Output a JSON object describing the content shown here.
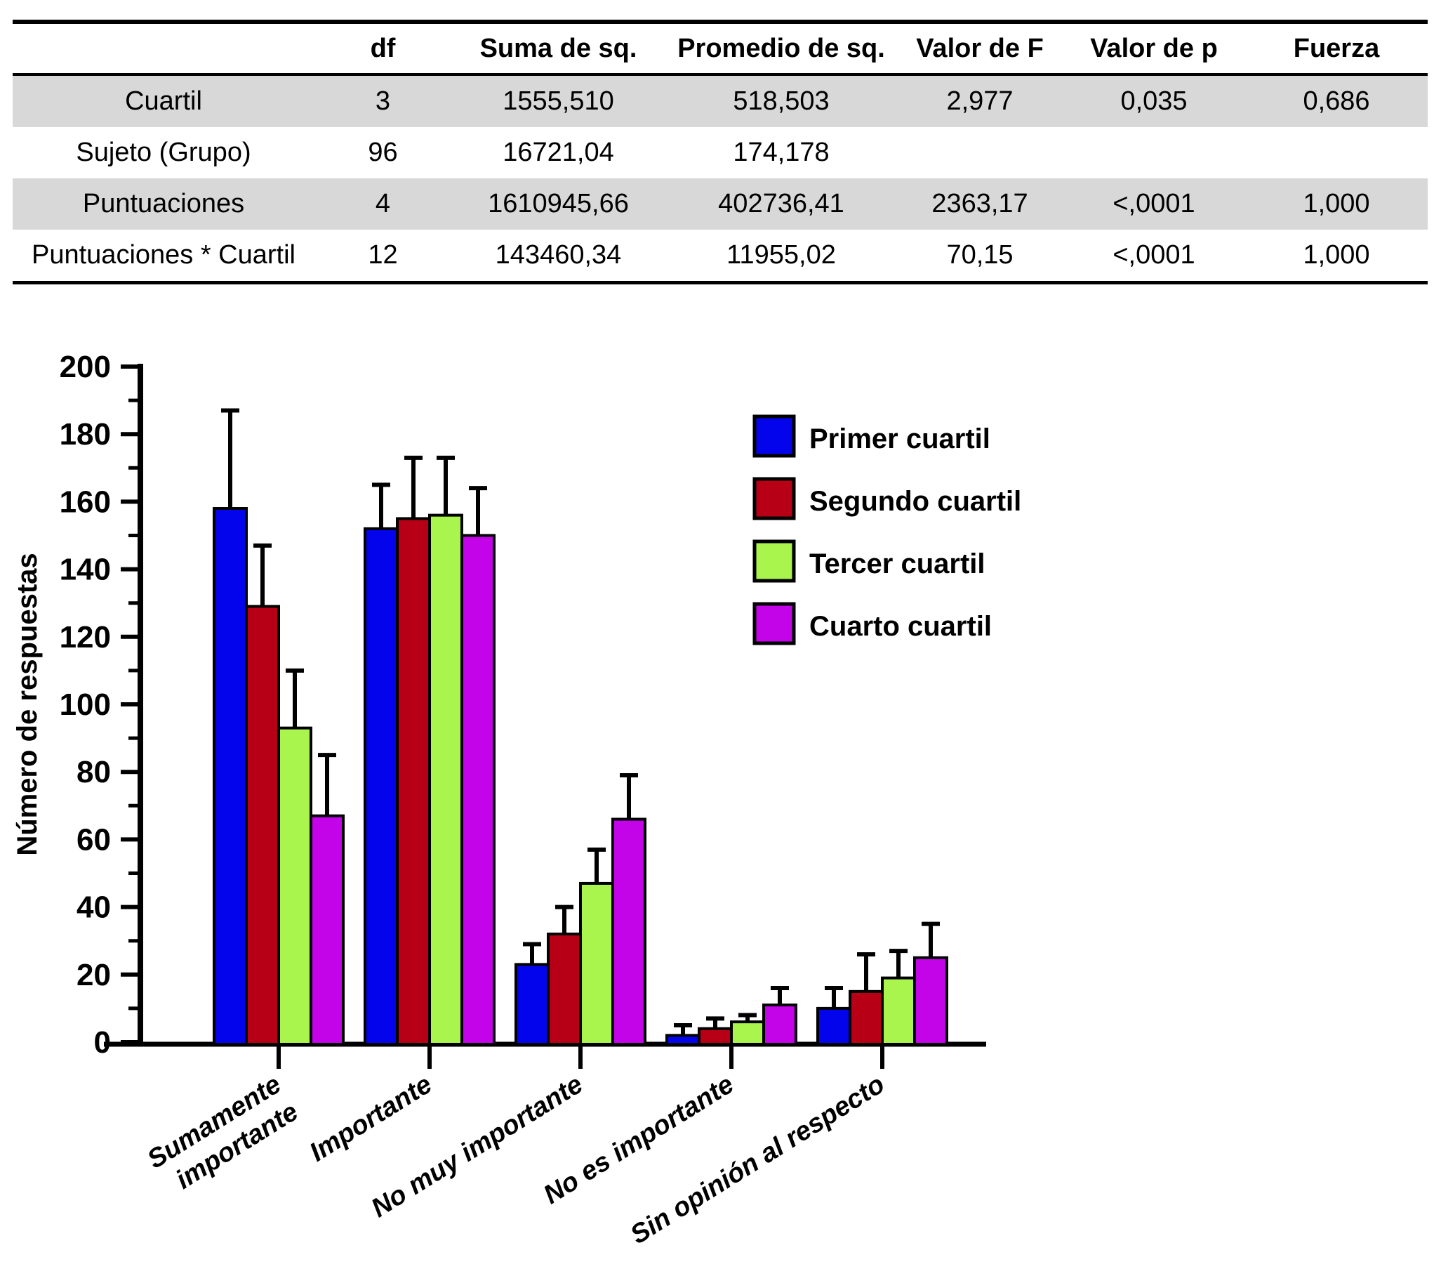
{
  "table": {
    "headers": [
      "",
      "df",
      "Suma de sq.",
      "Promedio de sq.",
      "Valor de F",
      "Valor de p",
      "Fuerza"
    ],
    "rows": [
      {
        "label": "Cuartil",
        "cells": [
          "3",
          "1555,510",
          "518,503",
          "2,977",
          "0,035",
          "0,686"
        ],
        "shaded": true
      },
      {
        "label": "Sujeto (Grupo)",
        "cells": [
          "96",
          "16721,04",
          "174,178",
          "",
          "",
          ""
        ],
        "shaded": false
      },
      {
        "label": "Puntuaciones",
        "cells": [
          "4",
          "1610945,66",
          "402736,41",
          "2363,17",
          "<,0001",
          "1,000"
        ],
        "shaded": true
      },
      {
        "label": "Puntuaciones * Cuartil",
        "cells": [
          "12",
          "143460,34",
          "11955,02",
          "70,15",
          "<,0001",
          "1,000"
        ],
        "shaded": false
      }
    ]
  },
  "chart_data": {
    "type": "bar",
    "title": "",
    "xlabel": "",
    "ylabel": "Número de respuestas",
    "ylim": [
      0,
      200
    ],
    "ytick_major": 20,
    "ytick_minor": 10,
    "grid": false,
    "legend_position": "upper right inside",
    "error_bars": "upper only",
    "categories": [
      "Sumamente importante",
      "Importante",
      "No muy importante",
      "No es importante",
      "Sin opinión al respecto"
    ],
    "category_label_lines": [
      [
        "Sumamente",
        "importante"
      ],
      [
        "Importante"
      ],
      [
        "No muy importante"
      ],
      [
        "No es importante"
      ],
      [
        "Sin opinión al respecto"
      ]
    ],
    "series": [
      {
        "name": "Primer cuartil",
        "color": "#0404EC",
        "values": [
          158,
          152,
          23,
          2,
          10
        ],
        "errors": [
          29,
          13,
          6,
          3,
          6
        ]
      },
      {
        "name": "Segundo cuartil",
        "color": "#B70015",
        "values": [
          129,
          155,
          32,
          4,
          15
        ],
        "errors": [
          18,
          18,
          8,
          3,
          11
        ]
      },
      {
        "name": "Tercer cuartil",
        "color": "#A9F44D",
        "values": [
          93,
          156,
          47,
          6,
          19
        ],
        "errors": [
          17,
          17,
          10,
          2,
          8
        ]
      },
      {
        "name": "Cuarto cuartil",
        "color": "#C303E8",
        "values": [
          67,
          150,
          66,
          11,
          25
        ],
        "errors": [
          18,
          14,
          13,
          5,
          10
        ]
      }
    ]
  }
}
